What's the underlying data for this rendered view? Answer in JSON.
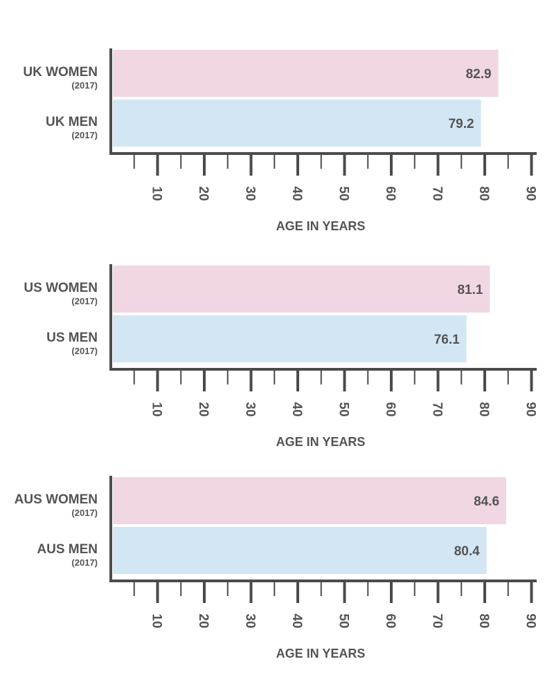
{
  "colors": {
    "women": "#f0d7e3",
    "men": "#d3e6f3",
    "axis": "#4b4b4b",
    "text": "#545454"
  },
  "chart_data": [
    {
      "type": "bar",
      "orientation": "horizontal",
      "categories": [
        "UK WOMEN",
        "UK MEN"
      ],
      "sublabels": [
        "(2017)",
        "(2017)"
      ],
      "values": [
        82.9,
        79.2
      ],
      "value_labels": [
        "82.9",
        "79.2"
      ],
      "series_kind": [
        "women",
        "men"
      ],
      "xlabel": "AGE IN YEARS",
      "xlim": [
        0,
        90
      ],
      "xticks": [
        10,
        20,
        30,
        40,
        50,
        60,
        70,
        80,
        90
      ],
      "xtick_labels": [
        "10",
        "20",
        "30",
        "40",
        "50",
        "60",
        "70",
        "80",
        "90"
      ],
      "minor_ticks": [
        5,
        15,
        25,
        35,
        45,
        55,
        65,
        75,
        85
      ]
    },
    {
      "type": "bar",
      "orientation": "horizontal",
      "categories": [
        "US WOMEN",
        "US MEN"
      ],
      "sublabels": [
        "(2017)",
        "(2017)"
      ],
      "values": [
        81.1,
        76.1
      ],
      "value_labels": [
        "81.1",
        "76.1"
      ],
      "series_kind": [
        "women",
        "men"
      ],
      "xlabel": "AGE IN YEARS",
      "xlim": [
        0,
        90
      ],
      "xticks": [
        10,
        20,
        30,
        40,
        50,
        60,
        70,
        80,
        90
      ],
      "xtick_labels": [
        "10",
        "20",
        "30",
        "40",
        "50",
        "60",
        "70",
        "80",
        "90"
      ],
      "minor_ticks": [
        5,
        15,
        25,
        35,
        45,
        55,
        65,
        75,
        85
      ]
    },
    {
      "type": "bar",
      "orientation": "horizontal",
      "categories": [
        "AUS WOMEN",
        "AUS MEN"
      ],
      "sublabels": [
        "(2017)",
        "(2017)"
      ],
      "values": [
        84.6,
        80.4
      ],
      "value_labels": [
        "84.6",
        "80.4"
      ],
      "series_kind": [
        "women",
        "men"
      ],
      "xlabel": "AGE IN YEARS",
      "xlim": [
        0,
        90
      ],
      "xticks": [
        10,
        20,
        30,
        40,
        50,
        60,
        70,
        80,
        90
      ],
      "xtick_labels": [
        "10",
        "20",
        "30",
        "40",
        "50",
        "60",
        "70",
        "80",
        "90"
      ],
      "minor_ticks": [
        5,
        15,
        25,
        35,
        45,
        55,
        65,
        75,
        85
      ]
    }
  ]
}
